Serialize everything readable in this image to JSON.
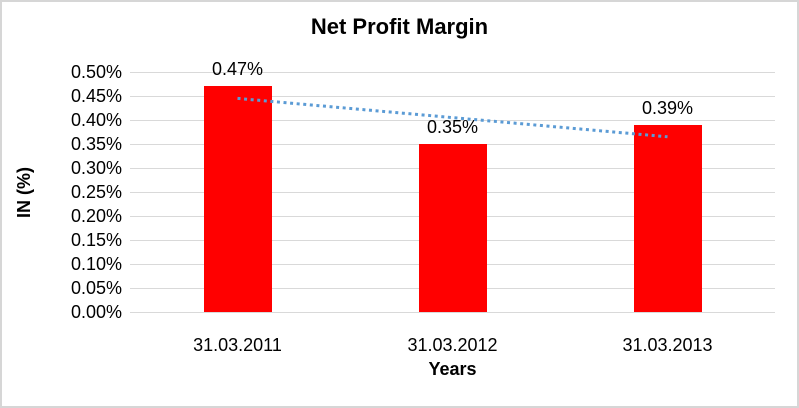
{
  "chart_data": {
    "type": "bar",
    "title": "Net Profit Margin",
    "xlabel": "Years",
    "ylabel": "IN (%)",
    "categories": [
      "31.03.2011",
      "31.03.2012",
      "31.03.2013"
    ],
    "values": [
      0.47,
      0.35,
      0.39
    ],
    "value_labels": [
      "0.47%",
      "0.35%",
      "0.39%"
    ],
    "ylim": [
      0,
      0.5
    ],
    "ytick_step": 0.05,
    "ytick_labels": [
      "0.00%",
      "0.05%",
      "0.10%",
      "0.15%",
      "0.20%",
      "0.25%",
      "0.30%",
      "0.35%",
      "0.40%",
      "0.45%",
      "0.50%"
    ],
    "grid": true,
    "legend": "none",
    "bar_color": "#FF0000",
    "trendline": {
      "type": "linear",
      "style": "dotted",
      "color": "#5B9BD5",
      "start_value": 0.445,
      "end_value": 0.365
    },
    "colors": {
      "text": "#000000",
      "gridline": "#D9D9D9",
      "background": "#FFFFFF",
      "frame_border": "#D6D6D6"
    }
  }
}
